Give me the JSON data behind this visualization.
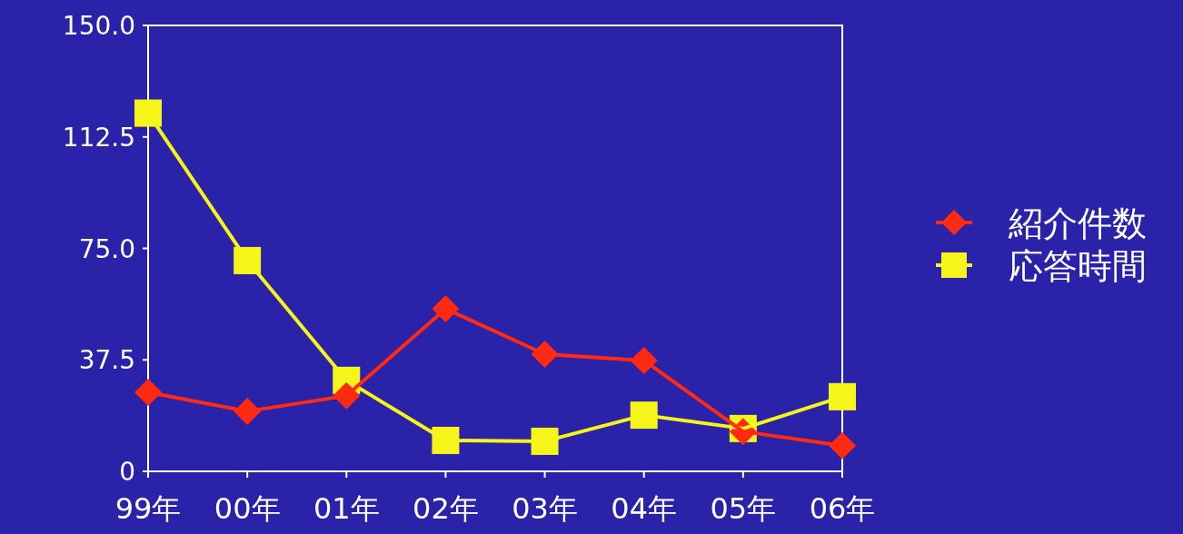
{
  "chart_data": {
    "type": "line",
    "categories": [
      "99年",
      "00年",
      "01年",
      "02年",
      "03年",
      "04年",
      "05年",
      "06年"
    ],
    "series": [
      {
        "name": "紹介件数",
        "color": "#ff2a10",
        "marker": "diamond",
        "values": [
          26.6,
          20.2,
          25.4,
          54.7,
          39.4,
          37.3,
          13.4,
          8.6
        ]
      },
      {
        "name": "応答時間",
        "color": "#f5f51a",
        "marker": "square",
        "values": [
          120.5,
          70.9,
          30.6,
          10.4,
          10.1,
          18.9,
          14.4,
          25.1
        ]
      }
    ],
    "ylim": [
      0,
      150
    ],
    "yticks": [
      {
        "value": 0,
        "label": "0"
      },
      {
        "value": 37.5,
        "label": "37.5"
      },
      {
        "value": 75,
        "label": "75.0"
      },
      {
        "value": 112.5,
        "label": "112.5"
      },
      {
        "value": 150,
        "label": "150.0"
      }
    ],
    "grid": false,
    "legend": "right",
    "line_style": "solid"
  }
}
